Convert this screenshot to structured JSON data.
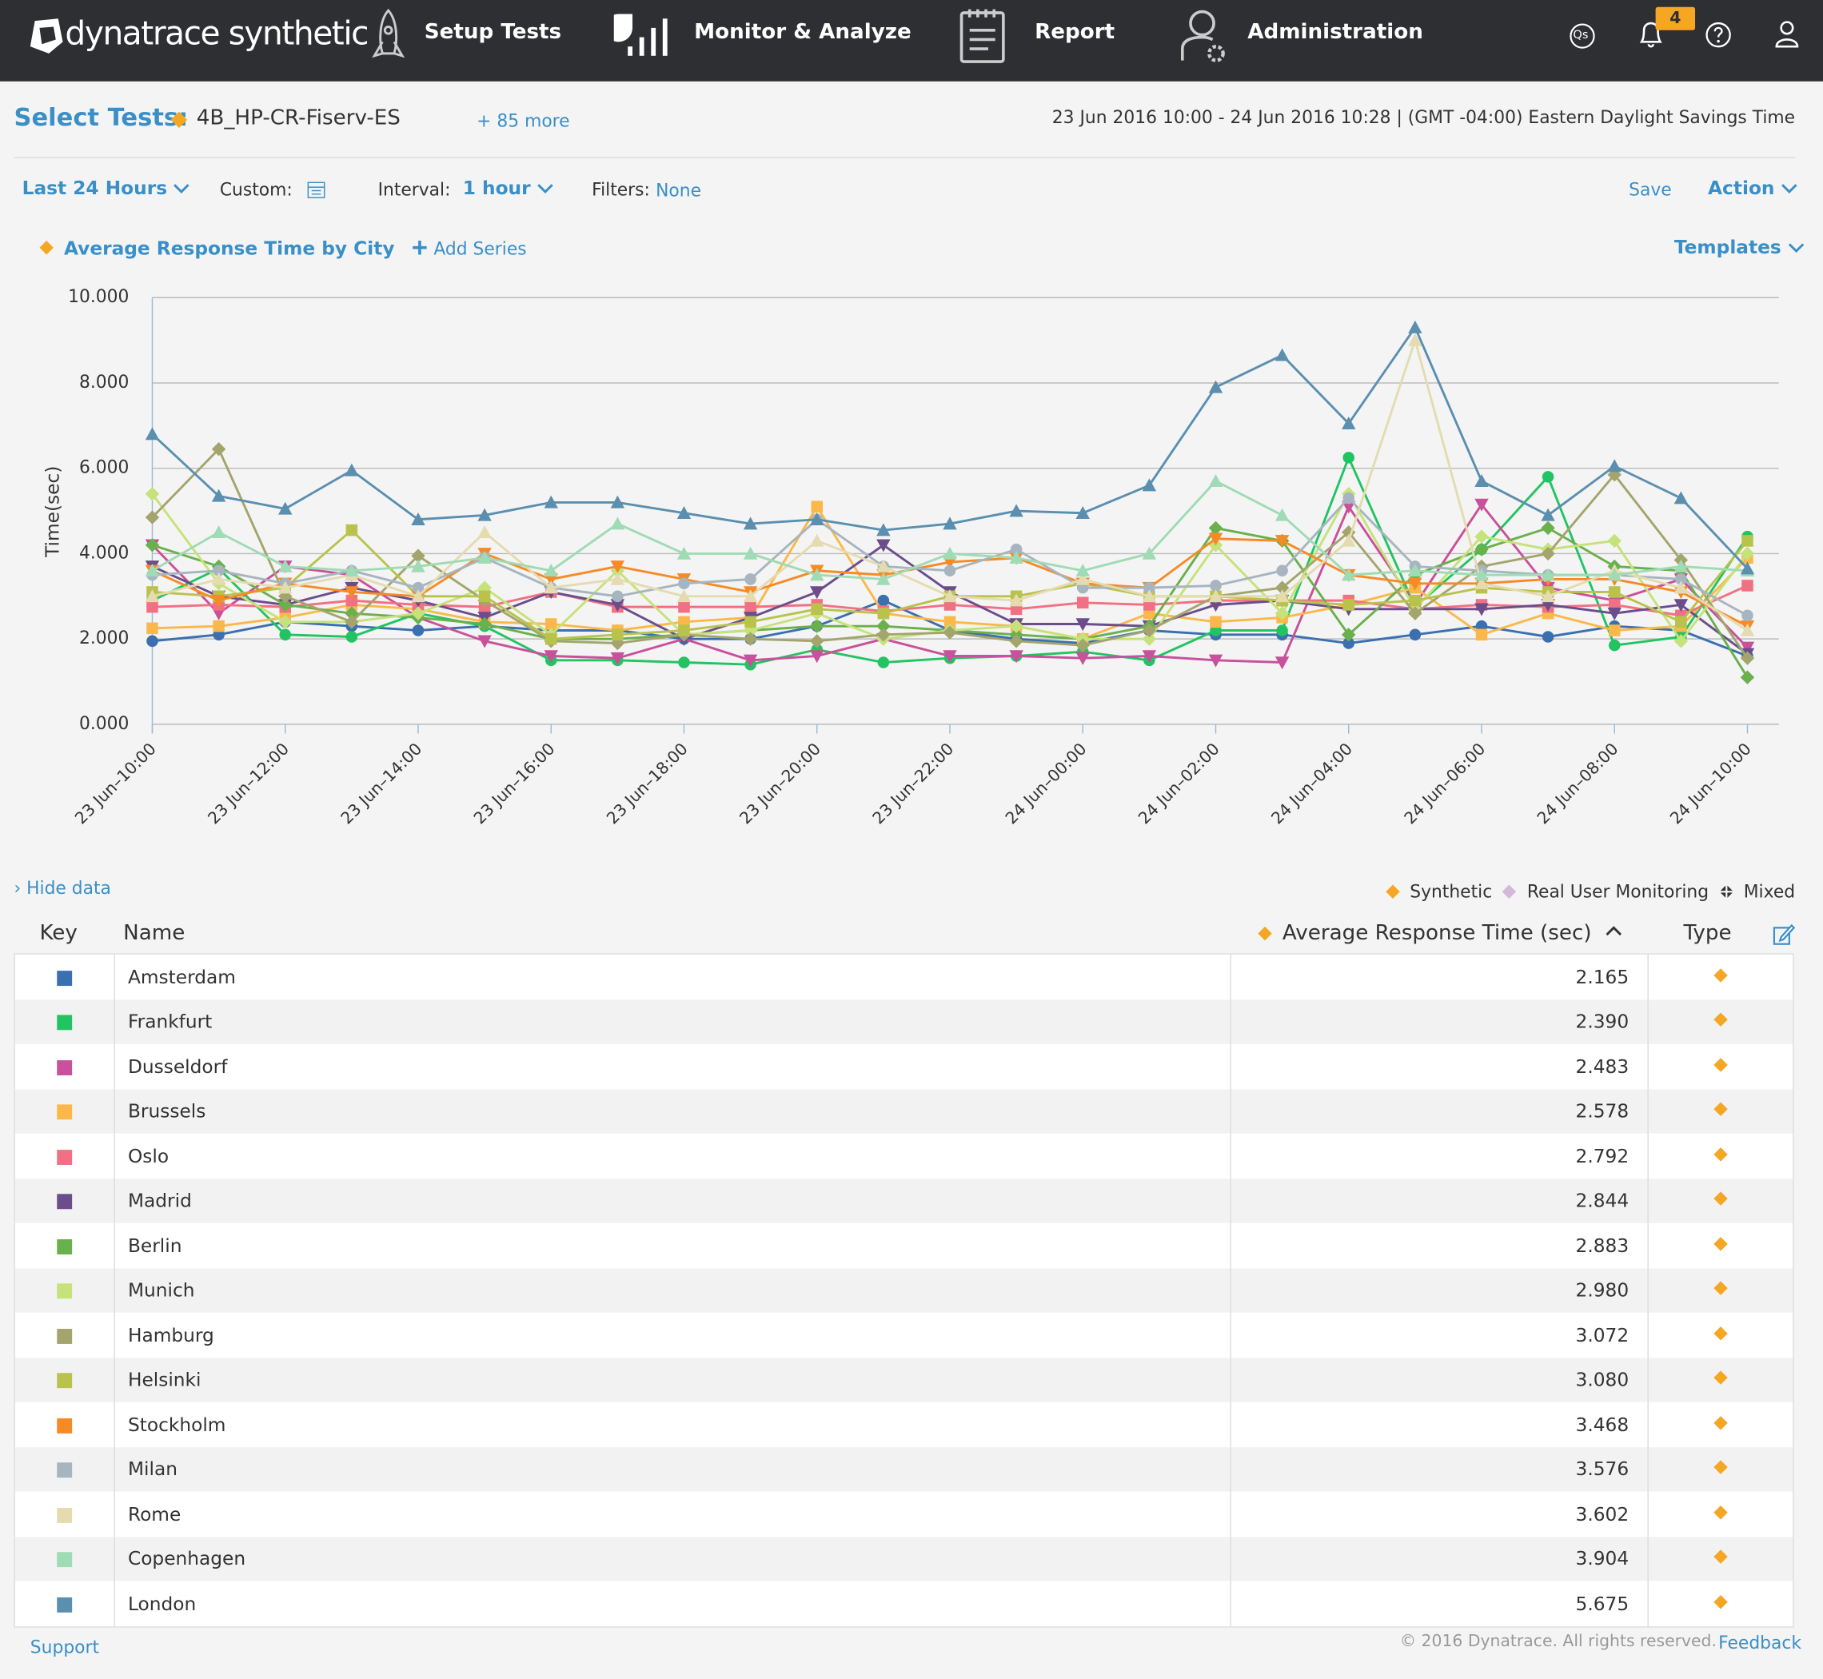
{
  "header": {
    "logo": "dynatrace synthetic",
    "nav": [
      "Setup Tests",
      "Monitor & Analyze",
      "Report",
      "Administration"
    ],
    "qs": "Qs",
    "notifications": "4"
  },
  "toolbar": {
    "select_tests_label": "Select Tests:",
    "test": "4B_HP-CR-Fiserv-ES",
    "more": "+ 85 more",
    "range": "23 Jun 2016 10:00 - 24 Jun 2016 10:28  | (GMT -04:00) Eastern Daylight Savings Time",
    "period": "Last 24 Hours",
    "custom_label": "Custom:",
    "interval_label": "Interval:",
    "interval": "1 hour",
    "filters_label": "Filters:",
    "filters": "None",
    "save": "Save",
    "action": "Action",
    "series_title": "Average Response Time by City",
    "add_series": "Add Series",
    "templates": "Templates"
  },
  "chart_data": {
    "type": "line",
    "y_label": "Time(sec)",
    "grid": true,
    "x": [
      "23 Jun–10:00",
      null,
      "23 Jun–12:00",
      null,
      "23 Jun–14:00",
      null,
      "23 Jun–16:00",
      null,
      "23 Jun–18:00",
      null,
      "23 Jun–20:00",
      null,
      "23 Jun–22:00",
      null,
      "24 Jun–00:00",
      null,
      "24 Jun–02:00",
      null,
      "24 Jun–04:00",
      null,
      "24 Jun–06:00",
      null,
      "24 Jun–08:00",
      null,
      "24 Jun–10:00"
    ],
    "ylim": [
      0,
      10
    ],
    "yticks": [
      {
        "value": 0,
        "label": "0.000"
      },
      {
        "value": 2,
        "label": "2.000"
      },
      {
        "value": 4,
        "label": "4.000"
      },
      {
        "value": 6,
        "label": "6.000"
      },
      {
        "value": 8,
        "label": "8.000"
      },
      {
        "value": 10,
        "label": "10.000"
      }
    ],
    "series": [
      {
        "name": "Amsterdam",
        "color": "#3a6fb0",
        "marker": "circle",
        "values": [
          1.95,
          2.1,
          2.4,
          2.3,
          2.2,
          2.3,
          2.2,
          2.2,
          2.0,
          2.0,
          2.3,
          2.9,
          2.2,
          2.0,
          1.9,
          2.2,
          2.1,
          2.1,
          1.9,
          2.1,
          2.3,
          2.05,
          2.3,
          2.2,
          1.6
        ]
      },
      {
        "name": "Frankfurt",
        "color": "#22c462",
        "marker": "circle",
        "values": [
          2.9,
          3.65,
          2.1,
          2.05,
          2.6,
          2.3,
          1.5,
          1.5,
          1.45,
          1.4,
          1.75,
          1.45,
          1.55,
          1.6,
          1.7,
          1.5,
          2.2,
          2.2,
          6.25,
          2.75,
          4.1,
          5.8,
          1.85,
          2.05,
          4.4
        ]
      },
      {
        "name": "Dusseldorf",
        "color": "#c9509a",
        "marker": "triangle-down",
        "values": [
          4.2,
          2.6,
          3.7,
          3.5,
          2.5,
          1.95,
          1.6,
          1.55,
          2.0,
          1.5,
          1.6,
          2.0,
          1.6,
          1.6,
          1.55,
          1.6,
          1.5,
          1.45,
          5.1,
          2.8,
          5.15,
          3.2,
          2.9,
          3.4,
          1.8
        ]
      },
      {
        "name": "Brussels",
        "color": "#fbb84a",
        "marker": "square",
        "values": [
          2.25,
          2.3,
          2.5,
          2.8,
          2.7,
          2.4,
          2.35,
          2.2,
          2.4,
          2.5,
          5.1,
          2.6,
          2.4,
          2.3,
          2.0,
          2.6,
          2.4,
          2.5,
          2.8,
          3.2,
          2.1,
          2.6,
          2.2,
          2.3,
          3.9
        ]
      },
      {
        "name": "Oslo",
        "color": "#f27083",
        "marker": "square",
        "values": [
          2.75,
          2.8,
          2.75,
          2.9,
          2.8,
          2.75,
          3.1,
          2.75,
          2.75,
          2.75,
          2.8,
          2.65,
          2.8,
          2.7,
          2.85,
          2.8,
          2.9,
          2.9,
          2.9,
          2.7,
          2.8,
          2.75,
          2.8,
          2.55,
          3.25
        ]
      },
      {
        "name": "Madrid",
        "color": "#6b4d8c",
        "marker": "triangle-down",
        "values": [
          3.7,
          3.0,
          2.8,
          3.2,
          2.9,
          2.5,
          3.1,
          2.8,
          2.0,
          2.5,
          3.1,
          4.2,
          3.1,
          2.35,
          2.35,
          2.3,
          2.8,
          2.9,
          2.7,
          2.7,
          2.7,
          2.8,
          2.6,
          2.8,
          1.65
        ]
      },
      {
        "name": "Berlin",
        "color": "#6ab04c",
        "marker": "diamond",
        "values": [
          4.2,
          3.7,
          2.8,
          2.6,
          2.5,
          2.35,
          2.0,
          2.0,
          2.1,
          2.2,
          2.3,
          2.3,
          2.2,
          2.1,
          2.0,
          2.3,
          4.6,
          4.3,
          2.1,
          3.5,
          4.1,
          4.6,
          3.7,
          3.6,
          1.1
        ]
      },
      {
        "name": "Munich",
        "color": "#c6e27a",
        "marker": "diamond",
        "values": [
          5.4,
          3.3,
          2.4,
          2.4,
          2.6,
          3.2,
          2.1,
          3.6,
          2.1,
          2.2,
          2.6,
          2.0,
          2.2,
          2.3,
          2.0,
          2.0,
          4.2,
          2.6,
          5.4,
          2.7,
          4.4,
          4.1,
          4.3,
          1.95,
          4.0
        ]
      },
      {
        "name": "Hamburg",
        "color": "#a3a56d",
        "marker": "diamond",
        "values": [
          4.85,
          6.45,
          3.0,
          2.4,
          3.95,
          2.9,
          1.95,
          1.9,
          2.1,
          2.0,
          1.95,
          2.1,
          2.15,
          1.95,
          1.85,
          2.2,
          3.0,
          3.2,
          4.5,
          2.6,
          3.7,
          4.0,
          5.85,
          3.85,
          1.55
        ]
      },
      {
        "name": "Helsinki",
        "color": "#b9c34c",
        "marker": "square",
        "values": [
          3.1,
          3.0,
          3.2,
          4.55,
          3.0,
          3.0,
          2.0,
          2.1,
          2.2,
          2.4,
          2.7,
          2.6,
          3.0,
          3.0,
          3.3,
          3.0,
          3.0,
          2.9,
          2.8,
          2.9,
          3.2,
          3.1,
          3.1,
          2.4,
          4.3
        ]
      },
      {
        "name": "Stockholm",
        "color": "#f68b26",
        "marker": "triangle-down",
        "values": [
          3.6,
          2.9,
          3.3,
          3.1,
          3.0,
          4.0,
          3.4,
          3.7,
          3.4,
          3.1,
          3.6,
          3.5,
          3.8,
          3.9,
          3.3,
          3.2,
          4.35,
          4.3,
          3.5,
          3.3,
          3.3,
          3.4,
          3.4,
          3.1,
          2.3
        ]
      },
      {
        "name": "Milan",
        "color": "#a7b5c0",
        "marker": "circle",
        "values": [
          3.5,
          3.6,
          3.3,
          3.6,
          3.2,
          3.9,
          3.2,
          3.0,
          3.3,
          3.4,
          4.8,
          3.7,
          3.6,
          4.1,
          3.2,
          3.2,
          3.25,
          3.6,
          5.3,
          3.7,
          3.6,
          3.5,
          3.5,
          3.4,
          2.55
        ]
      },
      {
        "name": "Rome",
        "color": "#e4dbb0",
        "marker": "triangle",
        "values": [
          3.0,
          3.4,
          3.2,
          3.5,
          3.0,
          4.5,
          3.2,
          3.4,
          3.0,
          3.0,
          4.3,
          3.7,
          3.0,
          2.9,
          3.4,
          3.0,
          3.0,
          3.0,
          4.3,
          9.0,
          3.3,
          3.0,
          3.6,
          3.2,
          2.2
        ]
      },
      {
        "name": "Copenhagen",
        "color": "#9fdbb4",
        "marker": "triangle",
        "values": [
          3.6,
          4.5,
          3.7,
          3.6,
          3.7,
          3.9,
          3.6,
          4.7,
          4.0,
          4.0,
          3.5,
          3.4,
          4.0,
          3.9,
          3.6,
          4.0,
          5.7,
          4.9,
          3.5,
          3.6,
          3.5,
          3.5,
          3.5,
          3.7,
          3.6
        ]
      },
      {
        "name": "London",
        "color": "#5b8fb0",
        "marker": "triangle",
        "values": [
          6.8,
          5.35,
          5.05,
          5.95,
          4.8,
          4.9,
          5.2,
          5.2,
          4.95,
          4.7,
          4.8,
          4.55,
          4.7,
          5.0,
          4.95,
          5.6,
          7.9,
          8.65,
          7.05,
          9.3,
          5.7,
          4.9,
          6.05,
          5.3,
          3.65
        ]
      }
    ]
  },
  "data_panel": {
    "hide_data": "› Hide data",
    "types": [
      "Synthetic",
      "Real User Monitoring",
      "Mixed"
    ]
  },
  "table": {
    "columns": [
      "Key",
      "Name",
      "Average Response Time (sec)",
      "Type"
    ],
    "rows": [
      [
        "Amsterdam",
        "2.165"
      ],
      [
        "Frankfurt",
        "2.390"
      ],
      [
        "Dusseldorf",
        "2.483"
      ],
      [
        "Brussels",
        "2.578"
      ],
      [
        "Oslo",
        "2.792"
      ],
      [
        "Madrid",
        "2.844"
      ],
      [
        "Berlin",
        "2.883"
      ],
      [
        "Munich",
        "2.980"
      ],
      [
        "Hamburg",
        "3.072"
      ],
      [
        "Helsinki",
        "3.080"
      ],
      [
        "Stockholm",
        "3.468"
      ],
      [
        "Milan",
        "3.576"
      ],
      [
        "Rome",
        "3.602"
      ],
      [
        "Copenhagen",
        "3.904"
      ],
      [
        "London",
        "5.675"
      ]
    ]
  },
  "footer": {
    "support": "Support",
    "copyright": "© 2016 Dynatrace. All rights reserved.",
    "feedback": "Feedback"
  }
}
